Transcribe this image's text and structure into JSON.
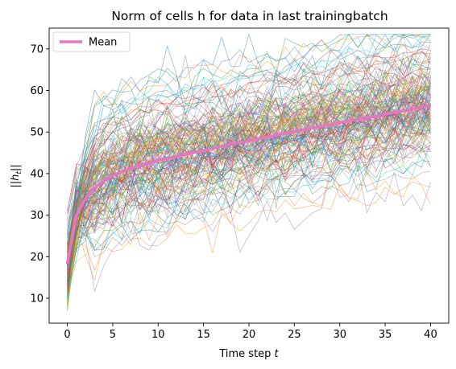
{
  "chart_data": {
    "type": "line",
    "title": "Norm of cells h for data in last trainingbatch",
    "xlabel": "Time step t",
    "ylabel": "||h_t||",
    "xlim": [
      -2,
      42
    ],
    "ylim": [
      4,
      75
    ],
    "xticks": [
      0,
      5,
      10,
      15,
      20,
      25,
      30,
      35,
      40
    ],
    "yticks": [
      10,
      20,
      30,
      40,
      50,
      60,
      70
    ],
    "grid": false,
    "legend": {
      "position": "top-left",
      "entries": [
        "Mean"
      ]
    },
    "x": [
      0,
      1,
      2,
      3,
      4,
      5,
      6,
      7,
      8,
      9,
      10,
      11,
      12,
      13,
      14,
      15,
      16,
      17,
      18,
      19,
      20,
      21,
      22,
      23,
      24,
      25,
      26,
      27,
      28,
      29,
      30,
      31,
      32,
      33,
      34,
      35,
      36,
      37,
      38,
      39,
      40
    ],
    "mean_series": {
      "name": "Mean",
      "color": "#e377c2",
      "values": [
        18.3,
        30.0,
        34.0,
        36.5,
        38.2,
        39.5,
        40.5,
        41.3,
        42.0,
        42.6,
        43.2,
        43.7,
        44.1,
        44.6,
        45.1,
        45.6,
        46.1,
        46.6,
        47.0,
        47.5,
        47.9,
        48.4,
        48.8,
        49.2,
        49.7,
        50.1,
        50.6,
        51.0,
        51.4,
        51.8,
        52.2,
        52.7,
        53.1,
        53.5,
        53.9,
        54.3,
        54.7,
        55.1,
        55.5,
        56.0,
        56.5
      ]
    },
    "individual_series": {
      "count": 150,
      "palette": [
        "#1f77b4",
        "#ff7f0e",
        "#2ca02c",
        "#d62728",
        "#9467bd",
        "#8c564b",
        "#e377c2",
        "#7f7f7f",
        "#bcbd22",
        "#17becf"
      ]
    }
  }
}
